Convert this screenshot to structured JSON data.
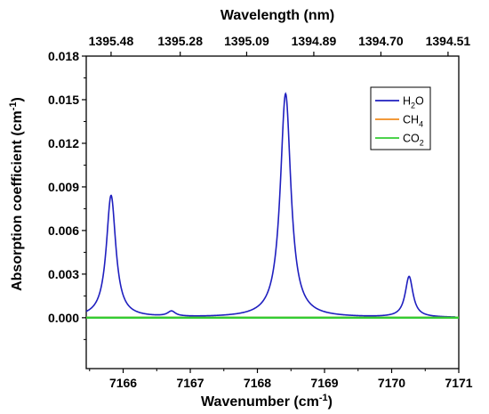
{
  "chart_data": {
    "type": "line",
    "xlabel": "Wavenumber (cm",
    "xlabel_sup": "-1",
    "xlabel_end": ")",
    "ylabel": "Absorption coefficient (cm",
    "ylabel_sup": "-1",
    "ylabel_end": ")",
    "top_xlabel": "Wavelength (nm)",
    "xlim": [
      7165.45,
      7171.0
    ],
    "ylim": [
      -0.0035,
      0.018
    ],
    "x_ticks": [
      7166,
      7167,
      7168,
      7169,
      7170,
      7171
    ],
    "y_ticks": [
      0.0,
      0.003,
      0.006,
      0.009,
      0.012,
      0.015,
      0.018
    ],
    "y_tick_labels": [
      "0.000",
      "0.003",
      "0.006",
      "0.009",
      "0.012",
      "0.015",
      "0.018"
    ],
    "top_ticks": [
      {
        "wavenumber": 7165.82,
        "label": "1395.48"
      },
      {
        "wavenumber": 7166.85,
        "label": "1395.28"
      },
      {
        "wavenumber": 7167.84,
        "label": "1395.09"
      },
      {
        "wavenumber": 7168.84,
        "label": "1394.89"
      },
      {
        "wavenumber": 7169.84,
        "label": "1394.70"
      },
      {
        "wavenumber": 7170.84,
        "label": "1394.51"
      }
    ],
    "legend_position": "top-right",
    "series": [
      {
        "name": "H2O",
        "legend_main": "H",
        "legend_sub": "2",
        "legend_tail": "O",
        "color": "#1f1fbf",
        "peaks": [
          {
            "center": 7165.82,
            "height": 0.0084,
            "hwhm": 0.085
          },
          {
            "center": 7166.72,
            "height": 0.00035,
            "hwhm": 0.07
          },
          {
            "center": 7168.42,
            "height": 0.0154,
            "hwhm": 0.095
          },
          {
            "center": 7170.26,
            "height": 0.0028,
            "hwhm": 0.07
          }
        ],
        "x_range": [
          7165.45,
          7170.95
        ]
      },
      {
        "name": "CH4",
        "legend_main": "CH",
        "legend_sub": "4",
        "legend_tail": "",
        "color": "#f08c1e",
        "values": "zero"
      },
      {
        "name": "CO2",
        "legend_main": "CO",
        "legend_sub": "2",
        "legend_tail": "",
        "color": "#33cc33",
        "values": "zero"
      }
    ]
  }
}
